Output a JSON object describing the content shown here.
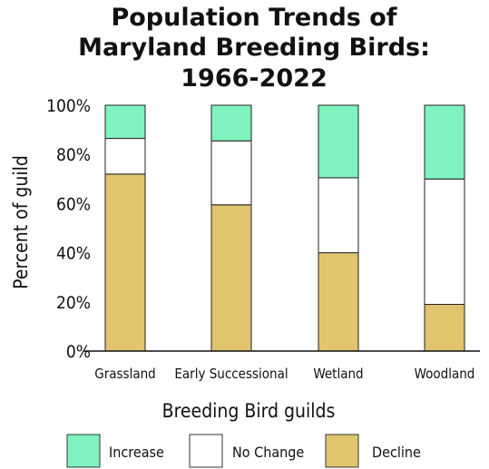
{
  "chart_data": {
    "type": "bar",
    "stacked": true,
    "title_lines": [
      "Population Trends of",
      "Maryland Breeding Birds:",
      "1966-2022"
    ],
    "xlabel": "Breeding Bird guilds",
    "ylabel": "Percent of guild",
    "ylim": [
      0,
      100
    ],
    "yticks": [
      "0%",
      "20%",
      "40%",
      "60%",
      "80%",
      "100%"
    ],
    "categories": [
      "Grassland",
      "Early Successional",
      "Wetland",
      "Woodland"
    ],
    "series": [
      {
        "name": "Decline",
        "color": "#e0c46e",
        "values": [
          72,
          59.5,
          40,
          19
        ]
      },
      {
        "name": "No Change",
        "color": "#ffffff",
        "values": [
          14.5,
          26,
          30.5,
          51
        ]
      },
      {
        "name": "Increase",
        "color": "#7ff3bd",
        "values": [
          13.5,
          14.5,
          29.5,
          30
        ]
      }
    ],
    "legend": {
      "position": "bottom",
      "order": [
        "Increase",
        "No Change",
        "Decline"
      ]
    },
    "grid": false
  }
}
